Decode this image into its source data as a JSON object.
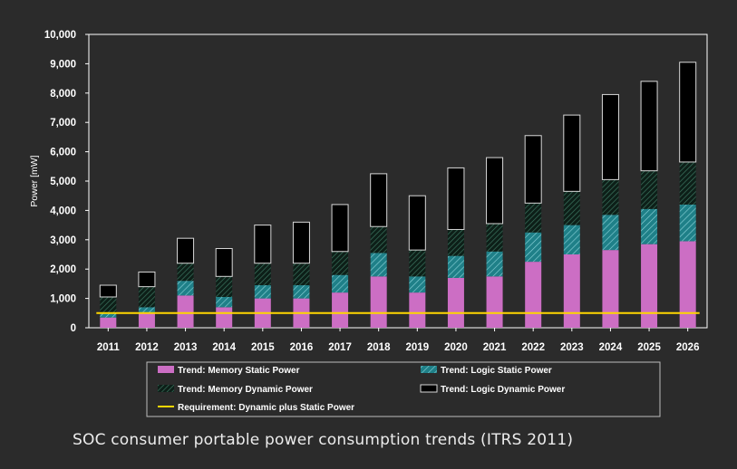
{
  "caption": "SOC consumer portable power consumption trends (ITRS 2011)",
  "colors": {
    "memory_static": "#cc6ec4",
    "logic_static": "#1f8088",
    "memory_dynamic": "#1a3a2c",
    "logic_dynamic": "#000000",
    "requirement": "#ffd700",
    "background": "#2b2b2b",
    "frame": "#ffffff"
  },
  "chart_data": {
    "type": "bar",
    "stacked": true,
    "title": "",
    "xlabel": "",
    "ylabel": "Power [mW]",
    "ylim": [
      0,
      10000
    ],
    "yticks": [
      "0",
      "1,000",
      "2,000",
      "3,000",
      "4,000",
      "5,000",
      "6,000",
      "7,000",
      "8,000",
      "9,000",
      "10,000"
    ],
    "grid": false,
    "legend_position": "bottom",
    "categories": [
      "2011",
      "2012",
      "2013",
      "2014",
      "2015",
      "2016",
      "2017",
      "2018",
      "2019",
      "2020",
      "2021",
      "2022",
      "2023",
      "2024",
      "2025",
      "2026"
    ],
    "series": [
      {
        "name": "Trend: Memory Static Power",
        "key": "memory_static",
        "values": [
          350,
          500,
          1100,
          700,
          1000,
          1000,
          1200,
          1750,
          1200,
          1700,
          1750,
          2250,
          2500,
          2650,
          2850,
          2950
        ]
      },
      {
        "name": "Trend: Logic Static Power",
        "key": "logic_static",
        "values": [
          150,
          200,
          500,
          350,
          450,
          450,
          600,
          800,
          550,
          750,
          850,
          1000,
          1000,
          1200,
          1200,
          1250
        ]
      },
      {
        "name": "Trend: Memory Dynamic Power",
        "key": "memory_dynamic",
        "values": [
          550,
          700,
          600,
          700,
          750,
          750,
          800,
          900,
          900,
          900,
          950,
          1000,
          1150,
          1200,
          1300,
          1450
        ]
      },
      {
        "name": "Trend: Logic Dynamic Power",
        "key": "logic_dynamic",
        "values": [
          400,
          500,
          850,
          950,
          1300,
          1400,
          1600,
          1800,
          1850,
          2100,
          2250,
          2300,
          2600,
          2900,
          3050,
          3400
        ]
      }
    ],
    "line_series": [
      {
        "name": "Requirement: Dynamic plus Static Power",
        "key": "requirement",
        "values": [
          500,
          500,
          500,
          500,
          500,
          500,
          500,
          500,
          500,
          500,
          500,
          500,
          500,
          500,
          500,
          500
        ]
      }
    ]
  }
}
